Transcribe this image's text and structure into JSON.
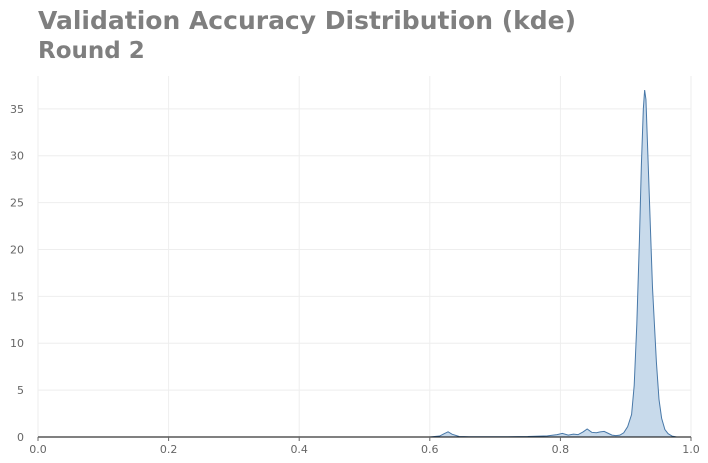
{
  "chart_data": {
    "type": "area",
    "title": "Validation Accuracy Distribution (kde)",
    "subtitle": "Round 2",
    "xlabel": "",
    "ylabel": "",
    "xlim": [
      0,
      1
    ],
    "ylim": [
      0,
      38.5
    ],
    "grid": true,
    "x_ticks": [
      "0.0",
      "0.2",
      "0.4",
      "0.6",
      "0.8",
      "1.0"
    ],
    "y_ticks": [
      "0",
      "5",
      "10",
      "15",
      "20",
      "25",
      "30",
      "35"
    ],
    "colors": {
      "line": "#4878a8",
      "fill": "#c5d8ea",
      "grid": "#eeeeee",
      "axis": "#000000"
    },
    "series": [
      {
        "x": [
          0.6,
          0.615,
          0.622,
          0.628,
          0.634,
          0.645,
          0.66,
          0.7,
          0.75,
          0.78,
          0.795,
          0.803,
          0.812,
          0.82,
          0.827,
          0.835,
          0.841,
          0.848,
          0.855,
          0.861,
          0.867,
          0.873,
          0.879,
          0.885,
          0.891,
          0.897,
          0.903,
          0.909,
          0.913,
          0.917,
          0.921,
          0.924,
          0.927,
          0.929,
          0.931,
          0.933,
          0.935,
          0.938,
          0.941,
          0.944,
          0.947,
          0.951,
          0.955,
          0.96,
          0.965,
          0.971,
          0.978
        ],
        "y": [
          0,
          0.1,
          0.35,
          0.55,
          0.3,
          0.05,
          0.02,
          0.02,
          0.05,
          0.12,
          0.25,
          0.38,
          0.2,
          0.3,
          0.25,
          0.55,
          0.85,
          0.5,
          0.45,
          0.55,
          0.6,
          0.4,
          0.2,
          0.15,
          0.2,
          0.45,
          1.1,
          2.4,
          5.5,
          12,
          21,
          29,
          35,
          37,
          36,
          32,
          28,
          22,
          16,
          12,
          8,
          4,
          2,
          0.8,
          0.35,
          0.1,
          0
        ]
      }
    ]
  }
}
